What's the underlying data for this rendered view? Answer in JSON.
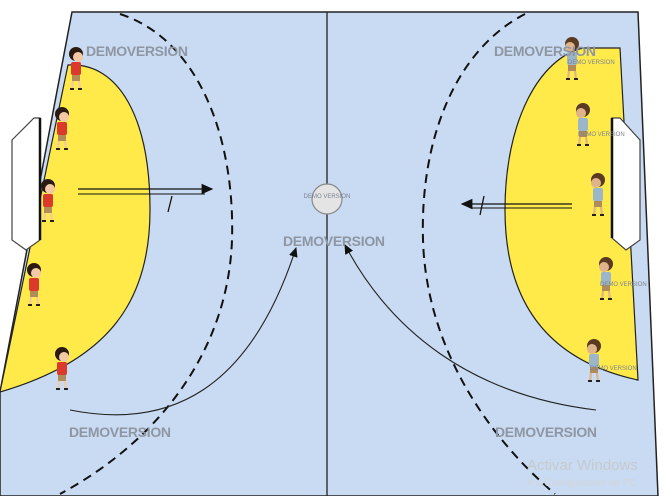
{
  "scene": {
    "court_color": "#c9dbf2",
    "area_color": "#ffea4a",
    "team_left_color": "#d93a2b",
    "team_right_color": "#9bb6c9",
    "ball_label": "DEMO VERSION"
  },
  "watermarks": {
    "top_left": "DEMOVERSION",
    "top_right": "DEMOVERSION",
    "center": "DEMOVERSION",
    "bottom_left": "DEMOVERSION",
    "bottom_right": "DEMOVERSION",
    "player_small": "DEMO VERSION"
  },
  "os_notice": {
    "title": "Activar Windows",
    "subtitle": "Ir a Configuración de PC"
  }
}
